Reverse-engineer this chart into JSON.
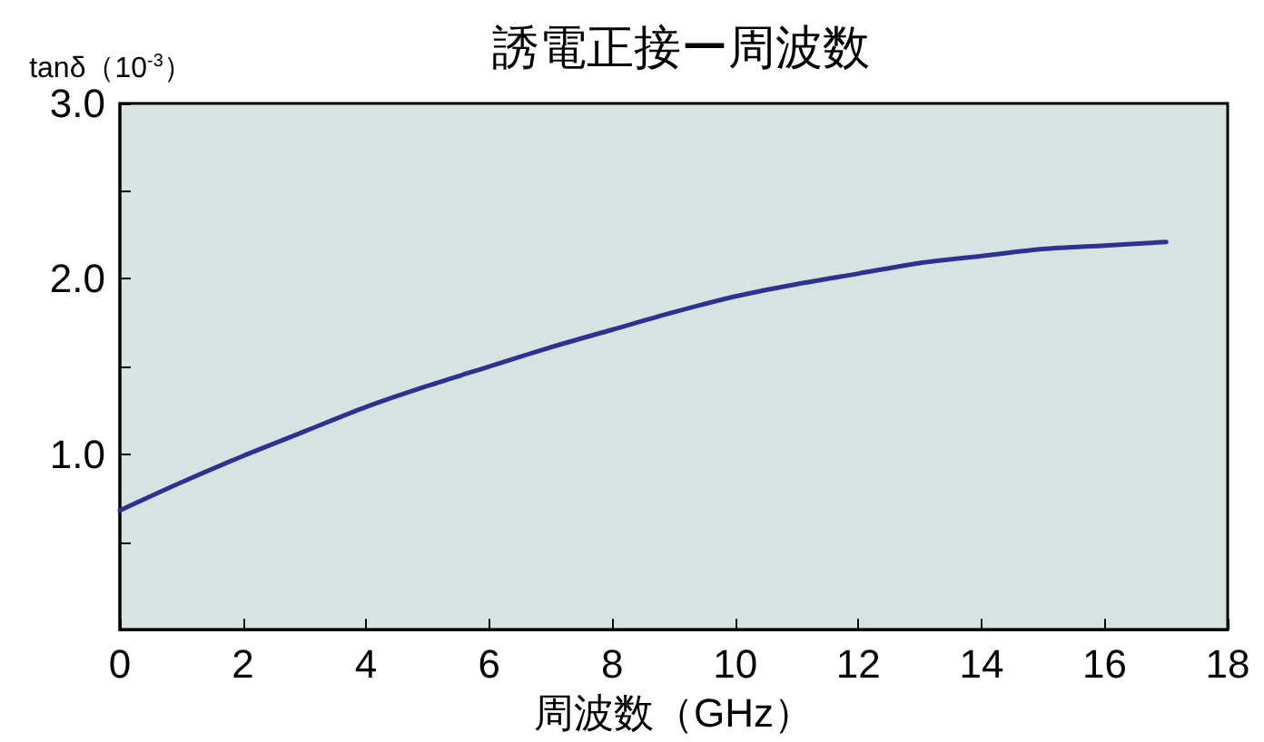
{
  "chart_data": {
    "type": "line",
    "title": "誘電正接ー周波数",
    "xlabel": "周波数（GHz）",
    "ylabel": "tanδ（10$^{-3}$）",
    "series": [
      {
        "color": "#2e3192",
        "x": [
          0,
          1,
          2,
          3,
          4,
          5,
          6,
          7,
          8,
          9,
          10,
          11,
          12,
          13,
          14,
          15,
          16,
          17
        ],
        "values": [
          0.68,
          0.84,
          0.99,
          1.13,
          1.27,
          1.39,
          1.5,
          1.61,
          1.71,
          1.81,
          1.9,
          1.97,
          2.03,
          2.09,
          2.13,
          2.17,
          2.19,
          2.21
        ]
      }
    ],
    "xlim": [
      0,
      18
    ],
    "xticks": [
      0,
      2,
      4,
      6,
      8,
      10,
      12,
      14,
      16,
      18
    ],
    "ylim": [
      0,
      3
    ],
    "yticks": [
      {
        "value": 0.5,
        "label": null
      },
      {
        "value": 1,
        "label": "1.0"
      },
      {
        "value": 1.5,
        "label": null
      },
      {
        "value": 2,
        "label": "2.0"
      },
      {
        "value": 2.5,
        "label": null
      },
      {
        "value": 3,
        "label": "3.0"
      }
    ],
    "grid": false,
    "marker": "none",
    "line_style": "solid"
  }
}
